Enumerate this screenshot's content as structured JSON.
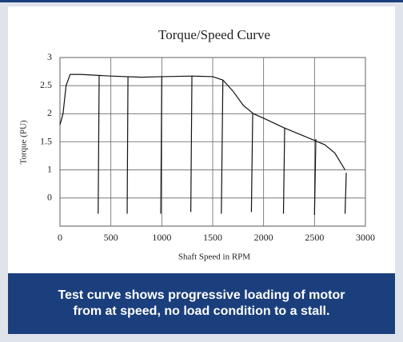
{
  "chart_data": {
    "type": "line",
    "title": "Torque/Speed Curve",
    "x_label": "Shaft Speed in RPM",
    "y_label": "Torque (PU)",
    "xlim": [
      0,
      3000
    ],
    "xticks": [
      0,
      500,
      1000,
      1500,
      2000,
      2500,
      3000
    ],
    "ylim": [
      0,
      3
    ],
    "yticks": [
      {
        "value": 0.5,
        "label": "0"
      },
      1,
      1.5,
      2,
      2.5,
      3
    ],
    "grid": true,
    "series": [
      {
        "color": "#111111",
        "x": [
          0,
          30,
          60,
          100,
          200,
          500,
          800,
          1000,
          1300,
          1500,
          1600,
          1700,
          1800,
          1900,
          2000,
          2200,
          2400,
          2600,
          2700,
          2800
        ],
        "values": [
          1.8,
          2.0,
          2.5,
          2.7,
          2.7,
          2.67,
          2.65,
          2.66,
          2.67,
          2.66,
          2.6,
          2.4,
          2.15,
          2.0,
          1.92,
          1.75,
          1.6,
          1.45,
          1.3,
          1.0
        ]
      },
      {
        "color": "#111111",
        "x": [
          385,
          375
        ],
        "values": [
          2.68,
          0.22
        ]
      },
      {
        "color": "#111111",
        "x": [
          668,
          660
        ],
        "values": [
          2.66,
          0.22
        ]
      },
      {
        "color": "#111111",
        "x": [
          1000,
          990
        ],
        "values": [
          2.66,
          0.22
        ]
      },
      {
        "color": "#111111",
        "x": [
          1296,
          1285
        ],
        "values": [
          2.67,
          0.25
        ]
      },
      {
        "color": "#111111",
        "x": [
          1600,
          1585
        ],
        "values": [
          2.6,
          0.22
        ]
      },
      {
        "color": "#111111",
        "x": [
          1893,
          1880
        ],
        "values": [
          2.0,
          0.25
        ]
      },
      {
        "color": "#111111",
        "x": [
          2207,
          2195
        ],
        "values": [
          1.75,
          0.22
        ]
      },
      {
        "color": "#111111",
        "x": [
          2513,
          2500
        ],
        "values": [
          1.55,
          0.2
        ]
      },
      {
        "color": "#111111",
        "x": [
          2812,
          2800
        ],
        "values": [
          0.95,
          0.22
        ]
      }
    ]
  },
  "caption": "Test curve shows progressive loading of motor from at speed, no load condition to a stall."
}
